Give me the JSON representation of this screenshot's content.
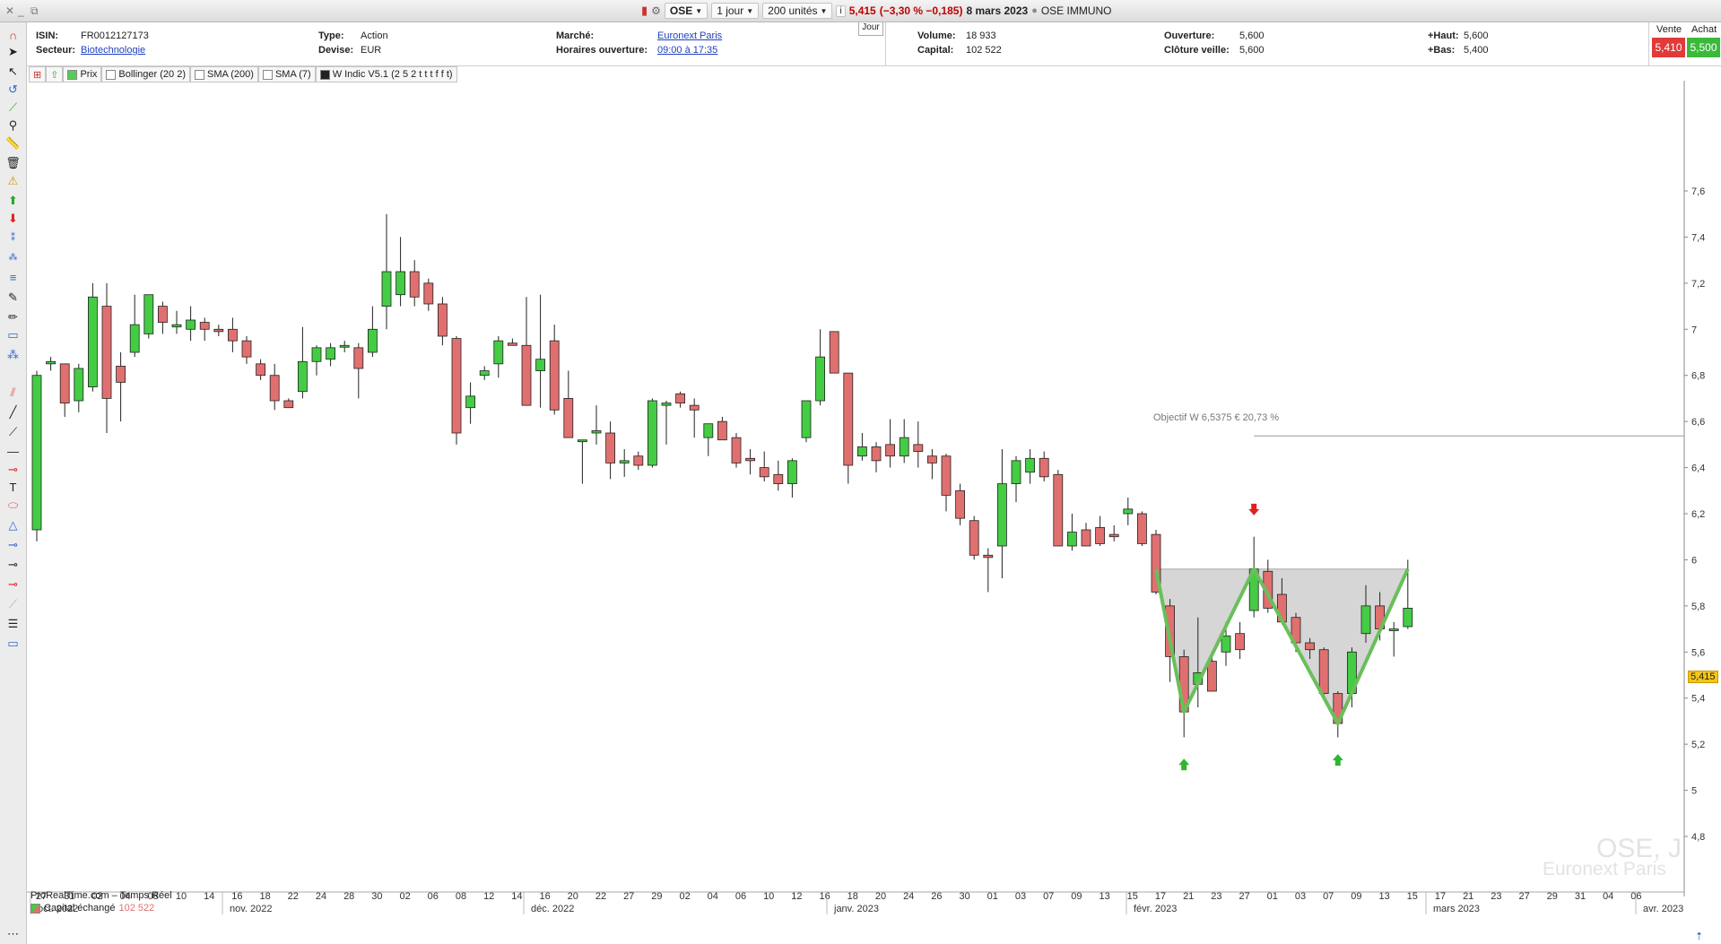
{
  "window": {
    "controls": [
      "close",
      "minimize",
      "zoom"
    ]
  },
  "toolbar": {
    "symbol": "OSE",
    "period": "1 jour",
    "units": "200 unités",
    "quote_price": "5,415",
    "quote_change": "(−3,30 % −0,185)",
    "quote_date": "8 mars 2023",
    "instrument_name": "OSE IMMUNO"
  },
  "info": {
    "isin_label": "ISIN:",
    "isin": "FR0012127173",
    "sector_label": "Secteur:",
    "sector": "Biotechnologie",
    "type_label": "Type:",
    "type": "Action",
    "currency_label": "Devise:",
    "currency": "EUR",
    "market_label": "Marché:",
    "market": "Euronext Paris",
    "hours_label": "Horaires ouverture:",
    "hours": "09:00 à 17:35",
    "tab": "Jour",
    "volume_label": "Volume:",
    "volume": "18 933",
    "capital_label": "Capital:",
    "capital": "102 522",
    "open_label": "Ouverture:",
    "open": "5,600",
    "prev_close_label": "Clôture veille:",
    "prev_close": "5,600",
    "high_label": "+Haut:",
    "high": "5,600",
    "low_label": "+Bas:",
    "low": "5,400",
    "sell_label": "Vente",
    "sell": "5,410",
    "buy_label": "Achat",
    "buy": "5,500"
  },
  "indicators": [
    {
      "label": "Prix",
      "color": "#55cc55"
    },
    {
      "label": "Bollinger (20 2)",
      "color": "#ffffff"
    },
    {
      "label": "SMA (200)",
      "color": "#ffffff"
    },
    {
      "label": "SMA (7)",
      "color": "#ffffff"
    },
    {
      "label": "W Indic V5.1 (2 5 2 t t t f f t)",
      "color": "#222222"
    }
  ],
  "footer": {
    "source": "ProRealTime.com – Temps Réel",
    "volume_label": "Capital échangé",
    "volume_value": "102 522"
  },
  "watermark": {
    "symbol": "OSE, J",
    "market": "Euronext Paris"
  },
  "price_tag": "5,415",
  "colors": {
    "up": "#44cc44",
    "down": "#e07070",
    "pattern_line": "#6abf5a",
    "pattern_fill": "#cfcfcf"
  },
  "chart_data": {
    "type": "candlestick",
    "y_ticks": [
      4.8,
      5,
      5.2,
      5.4,
      5.6,
      5.8,
      6,
      6.2,
      6.4,
      6.6,
      6.8,
      7,
      7.2,
      7.4,
      7.6
    ],
    "y_tick_labels": [
      "4,8",
      "5",
      "5,2",
      "5,4",
      "5,6",
      "5,8",
      "6",
      "6,2",
      "6,4",
      "6,6",
      "6,8",
      "7",
      "7,2",
      "7,4",
      "7,6"
    ],
    "ylim": [
      4.6,
      7.8
    ],
    "x_day_labels": [
      "27",
      "31",
      "02",
      "04",
      "08",
      "10",
      "14",
      "16",
      "18",
      "22",
      "24",
      "28",
      "30",
      "02",
      "06",
      "08",
      "12",
      "14",
      "16",
      "20",
      "22",
      "27",
      "29",
      "02",
      "04",
      "06",
      "10",
      "12",
      "16",
      "18",
      "20",
      "24",
      "26",
      "30",
      "01",
      "03",
      "07",
      "09",
      "13",
      "15",
      "17",
      "21",
      "23",
      "27",
      "01",
      "03",
      "07",
      "09",
      "13",
      "15",
      "17",
      "21",
      "23",
      "27",
      "29",
      "31",
      "04",
      "06"
    ],
    "x_month_labels": [
      "oct. 2022",
      "nov. 2022",
      "déc. 2022",
      "janv. 2023",
      "févr. 2023",
      "mars 2023",
      "avr. 2023"
    ],
    "candles": [
      {
        "o": 6.13,
        "h": 6.82,
        "l": 6.08,
        "c": 6.8
      },
      {
        "o": 6.85,
        "h": 6.88,
        "l": 6.82,
        "c": 6.86
      },
      {
        "o": 6.85,
        "h": 6.85,
        "l": 6.62,
        "c": 6.68
      },
      {
        "o": 6.69,
        "h": 6.85,
        "l": 6.64,
        "c": 6.83
      },
      {
        "o": 6.75,
        "h": 7.2,
        "l": 6.73,
        "c": 7.14
      },
      {
        "o": 7.1,
        "h": 7.2,
        "l": 6.55,
        "c": 6.7
      },
      {
        "o": 6.84,
        "h": 6.9,
        "l": 6.6,
        "c": 6.77
      },
      {
        "o": 6.9,
        "h": 7.15,
        "l": 6.88,
        "c": 7.02
      },
      {
        "o": 6.98,
        "h": 7.15,
        "l": 6.96,
        "c": 7.15
      },
      {
        "o": 7.1,
        "h": 7.12,
        "l": 6.98,
        "c": 7.03
      },
      {
        "o": 7.01,
        "h": 7.08,
        "l": 6.98,
        "c": 7.02
      },
      {
        "o": 7,
        "h": 7.1,
        "l": 6.95,
        "c": 7.04
      },
      {
        "o": 7.03,
        "h": 7.05,
        "l": 6.95,
        "c": 7.0
      },
      {
        "o": 7.0,
        "h": 7.02,
        "l": 6.97,
        "c": 6.99
      },
      {
        "o": 7.0,
        "h": 7.05,
        "l": 6.9,
        "c": 6.95
      },
      {
        "o": 6.95,
        "h": 6.97,
        "l": 6.85,
        "c": 6.88
      },
      {
        "o": 6.85,
        "h": 6.87,
        "l": 6.78,
        "c": 6.8
      },
      {
        "o": 6.8,
        "h": 6.85,
        "l": 6.65,
        "c": 6.69
      },
      {
        "o": 6.69,
        "h": 6.7,
        "l": 6.66,
        "c": 6.66
      },
      {
        "o": 6.73,
        "h": 7.01,
        "l": 6.7,
        "c": 6.86
      },
      {
        "o": 6.86,
        "h": 6.93,
        "l": 6.8,
        "c": 6.92
      },
      {
        "o": 6.87,
        "h": 6.94,
        "l": 6.84,
        "c": 6.92
      },
      {
        "o": 6.93,
        "h": 6.95,
        "l": 6.9,
        "c": 6.93
      },
      {
        "o": 6.92,
        "h": 6.94,
        "l": 6.7,
        "c": 6.83
      },
      {
        "o": 6.9,
        "h": 7.1,
        "l": 6.88,
        "c": 7.0
      },
      {
        "o": 7.1,
        "h": 7.5,
        "l": 7.0,
        "c": 7.25
      },
      {
        "o": 7.15,
        "h": 7.4,
        "l": 7.1,
        "c": 7.25
      },
      {
        "o": 7.25,
        "h": 7.3,
        "l": 7.1,
        "c": 7.14
      },
      {
        "o": 7.2,
        "h": 7.22,
        "l": 7.08,
        "c": 7.11
      },
      {
        "o": 7.11,
        "h": 7.14,
        "l": 6.93,
        "c": 6.97
      },
      {
        "o": 6.96,
        "h": 6.97,
        "l": 6.5,
        "c": 6.55
      },
      {
        "o": 6.66,
        "h": 6.77,
        "l": 6.59,
        "c": 6.71
      },
      {
        "o": 6.8,
        "h": 6.84,
        "l": 6.78,
        "c": 6.82
      },
      {
        "o": 6.85,
        "h": 6.97,
        "l": 6.79,
        "c": 6.95
      },
      {
        "o": 6.94,
        "h": 6.96,
        "l": 6.93,
        "c": 6.93
      },
      {
        "o": 6.93,
        "h": 7.14,
        "l": 6.68,
        "c": 6.67
      },
      {
        "o": 6.82,
        "h": 7.15,
        "l": 6.66,
        "c": 6.87
      },
      {
        "o": 6.95,
        "h": 7.02,
        "l": 6.63,
        "c": 6.65
      },
      {
        "o": 6.7,
        "h": 6.82,
        "l": 6.53,
        "c": 6.53
      },
      {
        "o": 6.52,
        "h": 6.52,
        "l": 6.33,
        "c": 6.52
      },
      {
        "o": 6.55,
        "h": 6.67,
        "l": 6.5,
        "c": 6.56
      },
      {
        "o": 6.55,
        "h": 6.6,
        "l": 6.35,
        "c": 6.42
      },
      {
        "o": 6.42,
        "h": 6.48,
        "l": 6.36,
        "c": 6.43
      },
      {
        "o": 6.45,
        "h": 6.47,
        "l": 6.39,
        "c": 6.41
      },
      {
        "o": 6.41,
        "h": 6.7,
        "l": 6.4,
        "c": 6.69
      },
      {
        "o": 6.67,
        "h": 6.69,
        "l": 6.5,
        "c": 6.68
      },
      {
        "o": 6.72,
        "h": 6.73,
        "l": 6.66,
        "c": 6.68
      },
      {
        "o": 6.67,
        "h": 6.7,
        "l": 6.53,
        "c": 6.65
      },
      {
        "o": 6.53,
        "h": 6.57,
        "l": 6.45,
        "c": 6.59
      },
      {
        "o": 6.6,
        "h": 6.62,
        "l": 6.52,
        "c": 6.52
      },
      {
        "o": 6.53,
        "h": 6.55,
        "l": 6.4,
        "c": 6.42
      },
      {
        "o": 6.44,
        "h": 6.48,
        "l": 6.37,
        "c": 6.43
      },
      {
        "o": 6.4,
        "h": 6.47,
        "l": 6.34,
        "c": 6.36
      },
      {
        "o": 6.37,
        "h": 6.43,
        "l": 6.3,
        "c": 6.33
      },
      {
        "o": 6.33,
        "h": 6.44,
        "l": 6.27,
        "c": 6.43
      },
      {
        "o": 6.53,
        "h": 6.69,
        "l": 6.51,
        "c": 6.69
      },
      {
        "o": 6.69,
        "h": 7.0,
        "l": 6.67,
        "c": 6.88
      },
      {
        "o": 6.99,
        "h": 6.99,
        "l": 6.81,
        "c": 6.81
      },
      {
        "o": 6.81,
        "h": 6.81,
        "l": 6.33,
        "c": 6.41
      },
      {
        "o": 6.45,
        "h": 6.55,
        "l": 6.43,
        "c": 6.49
      },
      {
        "o": 6.49,
        "h": 6.51,
        "l": 6.38,
        "c": 6.43
      },
      {
        "o": 6.5,
        "h": 6.61,
        "l": 6.4,
        "c": 6.45
      },
      {
        "o": 6.45,
        "h": 6.61,
        "l": 6.42,
        "c": 6.53
      },
      {
        "o": 6.5,
        "h": 6.6,
        "l": 6.4,
        "c": 6.47
      },
      {
        "o": 6.45,
        "h": 6.48,
        "l": 6.35,
        "c": 6.42
      },
      {
        "o": 6.45,
        "h": 6.46,
        "l": 6.21,
        "c": 6.28
      },
      {
        "o": 6.3,
        "h": 6.33,
        "l": 6.15,
        "c": 6.18
      },
      {
        "o": 6.17,
        "h": 6.19,
        "l": 6.0,
        "c": 6.02
      },
      {
        "o": 6.02,
        "h": 6.05,
        "l": 5.86,
        "c": 6.01
      },
      {
        "o": 6.06,
        "h": 6.48,
        "l": 5.92,
        "c": 6.33
      },
      {
        "o": 6.33,
        "h": 6.45,
        "l": 6.25,
        "c": 6.43
      },
      {
        "o": 6.38,
        "h": 6.48,
        "l": 6.33,
        "c": 6.44
      },
      {
        "o": 6.44,
        "h": 6.47,
        "l": 6.34,
        "c": 6.36
      },
      {
        "o": 6.37,
        "h": 6.39,
        "l": 6.06,
        "c": 6.06
      },
      {
        "o": 6.06,
        "h": 6.2,
        "l": 6.04,
        "c": 6.12
      },
      {
        "o": 6.13,
        "h": 6.16,
        "l": 6.06,
        "c": 6.06
      },
      {
        "o": 6.14,
        "h": 6.19,
        "l": 6.06,
        "c": 6.07
      },
      {
        "o": 6.11,
        "h": 6.15,
        "l": 6.08,
        "c": 6.1
      },
      {
        "o": 6.2,
        "h": 6.27,
        "l": 6.15,
        "c": 6.22
      },
      {
        "o": 6.2,
        "h": 6.21,
        "l": 6.06,
        "c": 6.07
      },
      {
        "o": 6.11,
        "h": 6.13,
        "l": 5.85,
        "c": 5.86
      },
      {
        "o": 5.8,
        "h": 5.83,
        "l": 5.47,
        "c": 5.58
      },
      {
        "o": 5.58,
        "h": 5.61,
        "l": 5.23,
        "c": 5.34
      },
      {
        "o": 5.46,
        "h": 5.75,
        "l": 5.36,
        "c": 5.51
      },
      {
        "o": 5.56,
        "h": 5.6,
        "l": 5.43,
        "c": 5.43
      },
      {
        "o": 5.6,
        "h": 5.73,
        "l": 5.54,
        "c": 5.67
      },
      {
        "o": 5.68,
        "h": 5.73,
        "l": 5.57,
        "c": 5.61
      },
      {
        "o": 5.78,
        "h": 6.1,
        "l": 5.75,
        "c": 5.96
      },
      {
        "o": 5.95,
        "h": 6.0,
        "l": 5.77,
        "c": 5.79
      },
      {
        "o": 5.85,
        "h": 5.92,
        "l": 5.72,
        "c": 5.73
      },
      {
        "o": 5.75,
        "h": 5.77,
        "l": 5.6,
        "c": 5.64
      },
      {
        "o": 5.64,
        "h": 5.66,
        "l": 5.57,
        "c": 5.61
      },
      {
        "o": 5.61,
        "h": 5.62,
        "l": 5.41,
        "c": 5.42
      },
      {
        "o": 5.42,
        "h": 5.43,
        "l": 5.23,
        "c": 5.29
      },
      {
        "o": 5.42,
        "h": 5.62,
        "l": 5.36,
        "c": 5.6
      },
      {
        "o": 5.68,
        "h": 5.89,
        "l": 5.64,
        "c": 5.8
      },
      {
        "o": 5.8,
        "h": 5.86,
        "l": 5.65,
        "c": 5.7
      },
      {
        "o": 5.7,
        "h": 5.73,
        "l": 5.58,
        "c": 5.7
      },
      {
        "o": 5.71,
        "h": 6.0,
        "l": 5.7,
        "c": 5.79
      }
    ],
    "annotations": {
      "objective_label": "Objectif W 6,5375 € 20,73 %",
      "objective_value": 6.5375,
      "neckline": 5.96,
      "w_points": [
        [
          80,
          5.96
        ],
        [
          82,
          5.34
        ],
        [
          87,
          5.96
        ],
        [
          93,
          5.29
        ],
        [
          98,
          5.96
        ]
      ],
      "up_arrows": [
        [
          82,
          5.11
        ],
        [
          93,
          5.13
        ]
      ],
      "down_arrow": [
        87,
        6.22
      ]
    }
  }
}
